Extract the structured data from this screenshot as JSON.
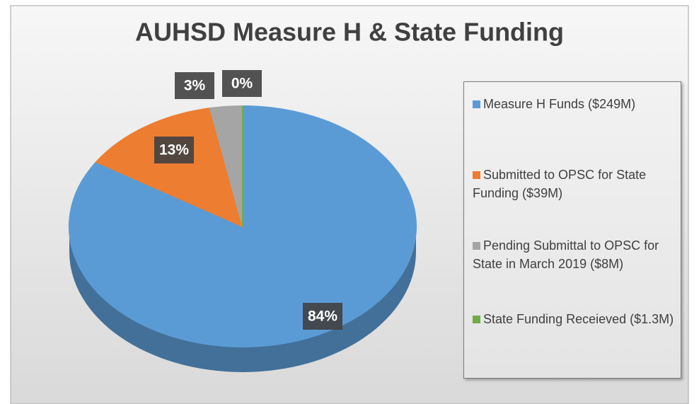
{
  "chart_data": {
    "type": "pie",
    "title": "AUHSD Measure H & State Funding",
    "categories": [
      "Measure H Funds ($249M)",
      "Submitted to OPSC for State Funding ($39M)",
      "Pending Submittal to OPSC for State in March 2019 ($8M)",
      "State Funding Receieved ($1.3M)"
    ],
    "values": [
      84,
      13,
      3,
      0
    ],
    "value_labels": [
      "84%",
      "13%",
      "3%",
      "0%"
    ],
    "colors": [
      "#5b9bd5",
      "#ed7d31",
      "#a5a5a5",
      "#70ad47"
    ],
    "legend": "right"
  }
}
